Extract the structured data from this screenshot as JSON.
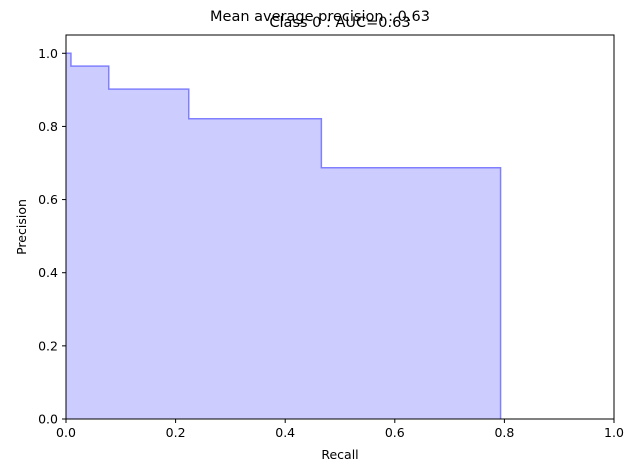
{
  "suptitle": "Mean average precision : 0.63",
  "chart_data": {
    "type": "area",
    "step": "post",
    "title": "Class 0 : AUC=0.63",
    "xlabel": "Recall",
    "ylabel": "Precision",
    "xlim": [
      0.0,
      1.0
    ],
    "ylim": [
      0.0,
      1.05
    ],
    "xticks": [
      "0.0",
      "0.2",
      "0.4",
      "0.6",
      "0.8",
      "1.0"
    ],
    "yticks": [
      "0.0",
      "0.2",
      "0.4",
      "0.6",
      "0.8",
      "1.0"
    ],
    "grid": false,
    "series": [
      {
        "color": "#8080ff",
        "fill_color": "#ccccff",
        "x": [
          0.0,
          0.009,
          0.078,
          0.224,
          0.466,
          0.793
        ],
        "y": [
          1.0,
          0.965,
          0.902,
          0.821,
          0.687,
          0.687
        ]
      }
    ]
  }
}
